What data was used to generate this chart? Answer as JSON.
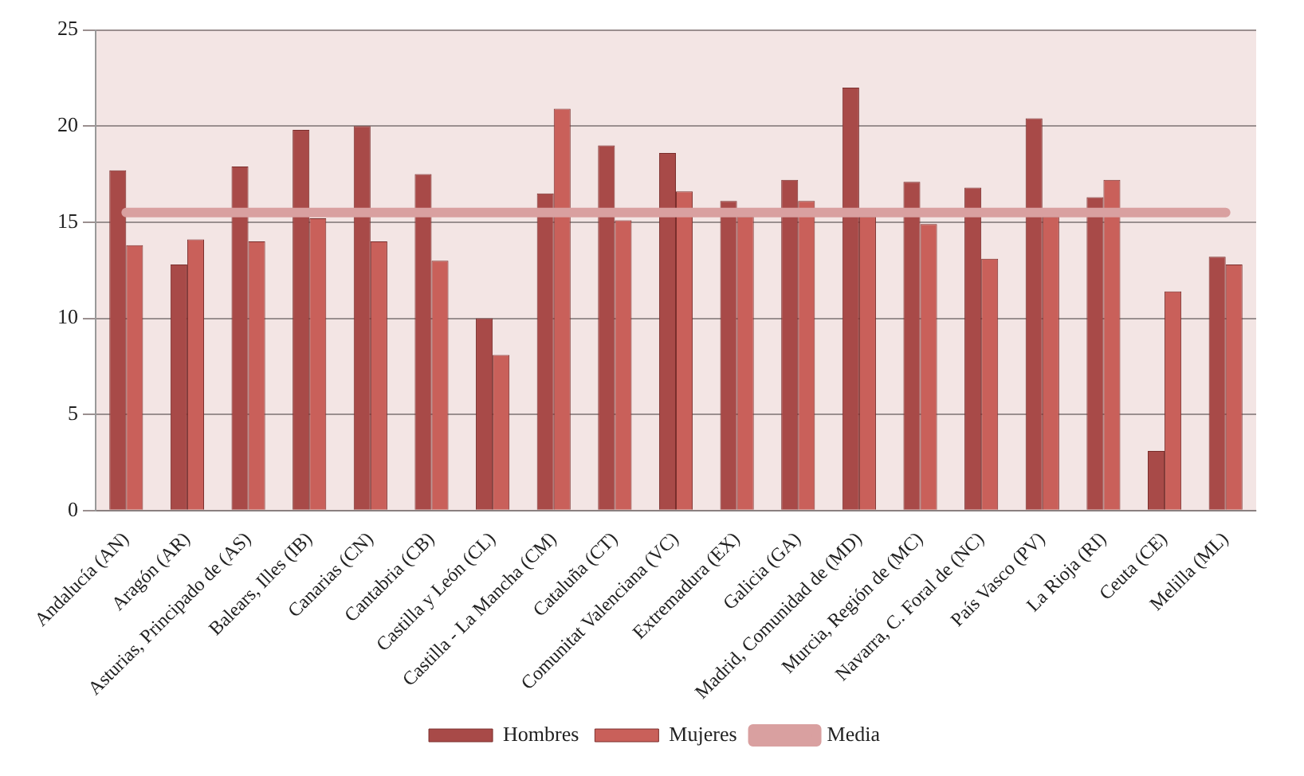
{
  "chart_data": {
    "type": "bar",
    "categories": [
      "Andalucía (AN)",
      "Aragón (AR)",
      "Asturias, Principado de (AS)",
      "Balears, Illes (IB)",
      "Canarias (CN)",
      "Cantabria (CB)",
      "Castilla y León (CL)",
      "Castilla - La Mancha (CM)",
      "Cataluña (CT)",
      "Comunitat Valenciana (VC)",
      "Extremadura (EX)",
      "Galicia (GA)",
      "Madrid, Comunidad de (MD)",
      "Murcia, Región de (MC)",
      "Navarra, C. Foral de (NC)",
      "País Vasco (PV)",
      "La Rioja (RI)",
      "Ceuta (CE)",
      "Melilla (ML)"
    ],
    "series": [
      {
        "name": "Hombres",
        "color": "#a84a48",
        "values": [
          17.7,
          12.8,
          17.9,
          19.8,
          20.0,
          17.5,
          10.0,
          16.5,
          19.0,
          18.6,
          16.1,
          17.2,
          22.0,
          17.1,
          16.8,
          20.4,
          16.3,
          3.1,
          13.2
        ]
      },
      {
        "name": "Mujeres",
        "color": "#c9605a",
        "values": [
          13.8,
          14.1,
          14.0,
          15.2,
          14.0,
          13.0,
          8.1,
          20.9,
          15.1,
          16.6,
          15.3,
          16.1,
          15.3,
          14.9,
          13.1,
          15.3,
          17.2,
          11.4,
          12.8
        ]
      },
      {
        "name": "Media",
        "type": "line",
        "color": "#d9a0a0",
        "values": [
          15.5,
          15.5,
          15.5,
          15.5,
          15.5,
          15.5,
          15.5,
          15.5,
          15.5,
          15.5,
          15.5,
          15.5,
          15.5,
          15.5,
          15.5,
          15.5,
          15.5,
          15.5,
          15.5
        ]
      }
    ],
    "ylim": [
      0,
      25
    ],
    "yticks": [
      0,
      5,
      10,
      15,
      20,
      25
    ],
    "grid": "y",
    "legend": "bottom",
    "marker": "none",
    "line_style": "solid"
  }
}
